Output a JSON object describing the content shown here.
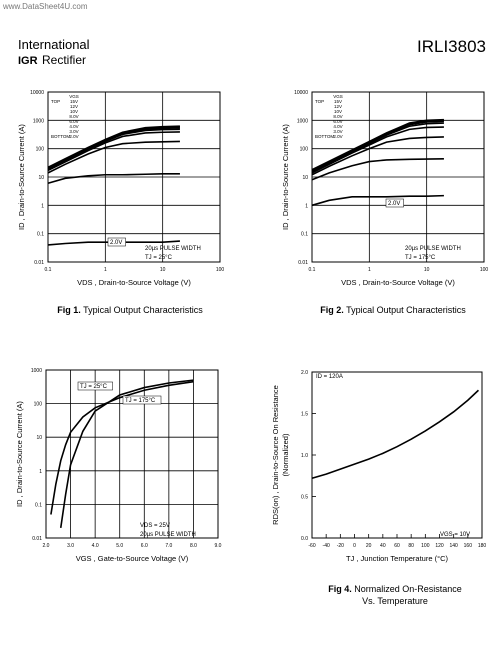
{
  "header": {
    "watermark": "www.DataSheet4U.com",
    "company_line1": "International",
    "logo_mark": "IGR",
    "company_line2": "Rectifier",
    "part_number": "IRLI3803"
  },
  "chart_data": [
    {
      "type": "line",
      "xscale": "log",
      "yscale": "log",
      "xlim": [
        0.1,
        100
      ],
      "ylim": [
        0.01,
        10000
      ],
      "xticks": [
        0.1,
        1,
        10,
        100
      ],
      "yticks": [
        0.01,
        0.1,
        1,
        10,
        100,
        1000,
        10000
      ],
      "grid": true,
      "color": "#000000",
      "x_label": "VDS , Drain-to-Source Voltage (V)",
      "y_label": "ID , Drain-to-Source Current (A)",
      "legend_title": "VGS",
      "legend_top_label": "TOP",
      "legend_bottom_label": "BOTTOM",
      "annotations": [
        "2.0V",
        "20µs PULSE WIDTH",
        "TJ = 25°C"
      ],
      "caption_label": "Fig 1.",
      "caption_text": "Typical Output Characteristics",
      "x": [
        0.1,
        0.2,
        0.5,
        1,
        2,
        5,
        10,
        20
      ],
      "series": [
        {
          "name": "15V",
          "values": [
            22,
            44,
            110,
            210,
            380,
            550,
            600,
            620
          ]
        },
        {
          "name": "12V",
          "values": [
            21,
            42,
            105,
            200,
            360,
            520,
            570,
            590
          ]
        },
        {
          "name": "10V",
          "values": [
            20,
            40,
            100,
            190,
            340,
            480,
            520,
            540
          ]
        },
        {
          "name": "8.0V",
          "values": [
            19,
            38,
            95,
            180,
            320,
            440,
            470,
            480
          ]
        },
        {
          "name": "6.0V",
          "values": [
            17,
            34,
            85,
            160,
            270,
            360,
            380,
            390
          ]
        },
        {
          "name": "4.0V",
          "values": [
            14,
            28,
            65,
            110,
            150,
            170,
            175,
            180
          ]
        },
        {
          "name": "3.0V",
          "values": [
            6,
            9,
            11,
            12,
            12,
            12.5,
            13,
            13
          ]
        },
        {
          "name": "2.0V",
          "values": [
            0.04,
            0.045,
            0.05,
            0.05,
            0.05,
            0.05,
            0.05,
            0.055
          ]
        }
      ]
    },
    {
      "type": "line",
      "xscale": "log",
      "yscale": "log",
      "xlim": [
        0.1,
        100
      ],
      "ylim": [
        0.01,
        10000
      ],
      "xticks": [
        0.1,
        1,
        10,
        100
      ],
      "yticks": [
        0.01,
        0.1,
        1,
        10,
        100,
        1000,
        10000
      ],
      "grid": true,
      "color": "#000000",
      "x_label": "VDS , Drain-to-Source Voltage (V)",
      "y_label": "ID , Drain-to-Source Current (A)",
      "legend_title": "VGS",
      "legend_top_label": "TOP",
      "legend_bottom_label": "BOTTOM",
      "annotations": [
        "2.0V",
        "20µs PULSE WIDTH",
        "TJ = 175°C"
      ],
      "caption_label": "Fig 2.",
      "caption_text": "Typical Output Characteristics",
      "x": [
        0.1,
        0.2,
        0.5,
        1,
        2,
        5,
        10,
        20
      ],
      "series": [
        {
          "name": "15V",
          "values": [
            18,
            36,
            90,
            180,
            360,
            800,
            1000,
            1050
          ]
        },
        {
          "name": "12V",
          "values": [
            17,
            34,
            86,
            170,
            340,
            760,
            950,
            1000
          ]
        },
        {
          "name": "10V",
          "values": [
            16,
            32,
            82,
            160,
            320,
            700,
            880,
            920
          ]
        },
        {
          "name": "8.0V",
          "values": [
            15,
            30,
            78,
            150,
            300,
            620,
            760,
            800
          ]
        },
        {
          "name": "6.0V",
          "values": [
            14,
            28,
            70,
            135,
            260,
            480,
            560,
            580
          ]
        },
        {
          "name": "4.0V",
          "values": [
            12,
            24,
            56,
            100,
            170,
            230,
            250,
            260
          ]
        },
        {
          "name": "3.0V",
          "values": [
            8,
            14,
            25,
            35,
            40,
            42,
            43,
            44
          ]
        },
        {
          "name": "2.0V",
          "values": [
            1,
            1.5,
            2,
            2,
            2,
            2.1,
            2.1,
            2.2
          ]
        }
      ]
    },
    {
      "type": "line",
      "xscale": "linear",
      "yscale": "log",
      "xlim": [
        2,
        9
      ],
      "ylim": [
        0.01,
        1000
      ],
      "xticks": [
        {
          "value": 2,
          "label": "2.0"
        },
        {
          "value": 3,
          "label": "3.0"
        },
        {
          "value": 4,
          "label": "4.0"
        },
        {
          "value": 5,
          "label": "5.0"
        },
        {
          "value": 6,
          "label": "6.0"
        },
        {
          "value": 7,
          "label": "7.0"
        },
        {
          "value": 8,
          "label": "8.0"
        },
        {
          "value": 9,
          "label": "9.0"
        }
      ],
      "yticks": [
        0.01,
        0.1,
        1,
        10,
        100,
        1000
      ],
      "grid": true,
      "color": "#000000",
      "x_label": "VGS , Gate-to-Source Voltage (V)",
      "y_label": "ID , Drain-to-Source Current (A)",
      "annotations": [
        "TJ = 25°C",
        "TJ = 175°C",
        "VDS = 25V",
        "20µs PULSE WIDTH"
      ],
      "x": [
        2.2,
        2.4,
        2.6,
        2.8,
        3.0,
        3.5,
        4.0,
        5.0,
        6.0,
        7.0,
        8.0
      ],
      "series": [
        {
          "name": "TJ = 175°C",
          "values": [
            0.05,
            0.4,
            2,
            6,
            14,
            40,
            75,
            150,
            250,
            350,
            450
          ]
        },
        {
          "name": "TJ = 25°C",
          "values": [
            null,
            null,
            0.02,
            0.2,
            1.5,
            15,
            60,
            180,
            300,
            410,
            500
          ]
        }
      ]
    },
    {
      "type": "line",
      "xscale": "linear",
      "yscale": "linear",
      "xlim": [
        -60,
        180
      ],
      "ylim": [
        0,
        2
      ],
      "xticks": [
        -60,
        -40,
        -20,
        0,
        20,
        40,
        60,
        80,
        100,
        120,
        140,
        160,
        180
      ],
      "yticks": [
        {
          "value": 0,
          "label": "0.0"
        },
        {
          "value": 0.5,
          "label": "0.5"
        },
        {
          "value": 1,
          "label": "1.0"
        },
        {
          "value": 1.5,
          "label": "1.5"
        },
        {
          "value": 2,
          "label": "2.0"
        }
      ],
      "grid": false,
      "color": "#000000",
      "x_label": "TJ , Junction Temperature (°C)",
      "y_label": "RDS(on) , Drain-to-Source On Resistance",
      "y_label_line2": "(Normalized)",
      "annotations": [
        "ID = 120A",
        "VGS = 10V"
      ],
      "caption_label": "Fig 4.",
      "caption_text": "Normalized On-Resistance",
      "caption_text_line2": "Vs. Temperature",
      "x": [
        -60,
        -40,
        -20,
        0,
        20,
        40,
        60,
        80,
        100,
        120,
        140,
        160,
        175
      ],
      "series": [
        {
          "name": "VGS = 10V",
          "values": [
            0.72,
            0.77,
            0.83,
            0.89,
            0.95,
            1.02,
            1.1,
            1.19,
            1.29,
            1.4,
            1.52,
            1.66,
            1.78
          ]
        }
      ]
    }
  ]
}
